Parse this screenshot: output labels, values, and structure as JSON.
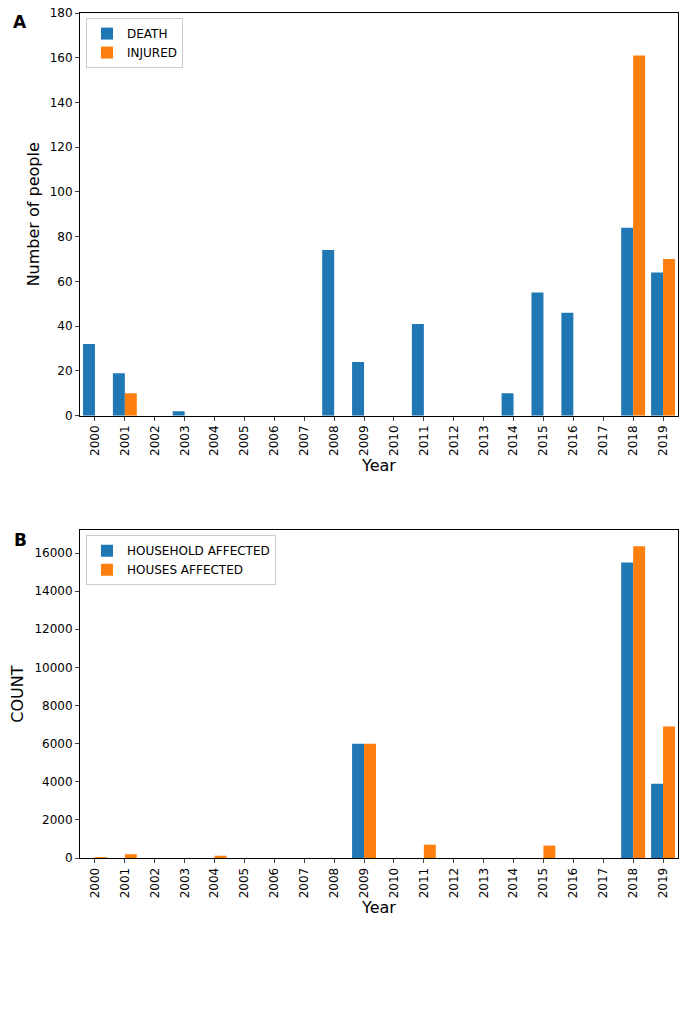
{
  "chart_data": [
    {
      "type": "bar",
      "title": "A",
      "x_label": "Year",
      "y_label": "Number of people",
      "categories": [
        "2000",
        "2001",
        "2002",
        "2003",
        "2004",
        "2005",
        "2006",
        "2007",
        "2008",
        "2009",
        "2010",
        "2011",
        "2012",
        "2013",
        "2014",
        "2015",
        "2016",
        "2017",
        "2018",
        "2019"
      ],
      "series": [
        {
          "name": "DEATH",
          "color": "#1f77b4",
          "values": [
            32,
            19,
            0,
            2,
            0,
            0,
            0,
            0,
            74,
            24,
            0,
            41,
            0,
            0,
            10,
            55,
            46,
            0,
            84,
            64
          ]
        },
        {
          "name": "INJURED",
          "color": "#ff7f0e",
          "values": [
            0,
            10,
            0,
            0,
            0,
            0,
            0,
            0,
            0,
            0,
            0,
            0,
            0,
            0,
            0,
            0,
            0,
            0,
            161,
            70
          ]
        }
      ],
      "ylim": [
        0,
        180
      ],
      "yticks": [
        0,
        20,
        40,
        60,
        80,
        100,
        120,
        140,
        160,
        180
      ],
      "legend": "upper left",
      "grid": false
    },
    {
      "type": "bar",
      "title": "B",
      "x_label": "Year",
      "y_label": "COUNT",
      "categories": [
        "2000",
        "2001",
        "2002",
        "2003",
        "2004",
        "2005",
        "2006",
        "2007",
        "2008",
        "2009",
        "2010",
        "2011",
        "2012",
        "2013",
        "2014",
        "2015",
        "2016",
        "2017",
        "2018",
        "2019"
      ],
      "series": [
        {
          "name": "HOUSEHOLD AFFECTED",
          "color": "#1f77b4",
          "values": [
            0,
            0,
            0,
            0,
            0,
            0,
            0,
            0,
            0,
            6000,
            0,
            0,
            0,
            0,
            0,
            0,
            0,
            0,
            15500,
            3900
          ]
        },
        {
          "name": "HOUSES AFFECTED",
          "color": "#ff7f0e",
          "values": [
            50,
            200,
            0,
            0,
            120,
            0,
            0,
            0,
            0,
            6000,
            0,
            700,
            0,
            0,
            0,
            650,
            0,
            0,
            16350,
            6900
          ]
        }
      ],
      "ylim": [
        0,
        17200
      ],
      "yticks": [
        0,
        2000,
        4000,
        6000,
        8000,
        10000,
        12000,
        14000,
        16000
      ],
      "legend": "upper left",
      "grid": false
    }
  ]
}
